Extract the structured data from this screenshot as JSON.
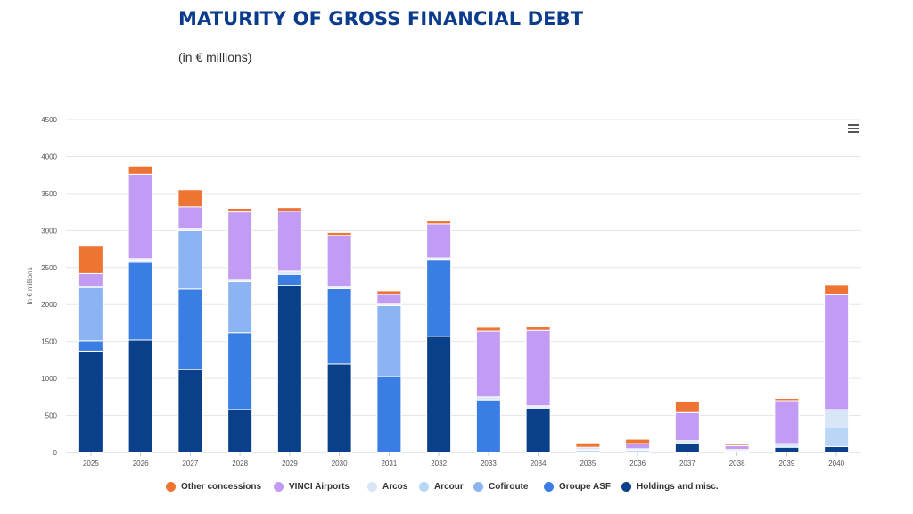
{
  "title": "MATURITY OF GROSS FINANCIAL DEBT",
  "subtitle": "(in € millions)",
  "menu": {
    "icon": "hamburger-menu-icon"
  },
  "chart_data": {
    "type": "bar",
    "stacked": true,
    "title": "MATURITY OF GROSS FINANCIAL DEBT",
    "subtitle": "(in € millions)",
    "xlabel": "",
    "ylabel": "In € millions",
    "ylim": [
      0,
      4500
    ],
    "yticks": [
      0,
      500,
      1000,
      1500,
      2000,
      2500,
      3000,
      3500,
      4000,
      4500
    ],
    "grid": true,
    "legend_position": "bottom",
    "categories": [
      "2025",
      "2026",
      "2027",
      "2028",
      "2029",
      "2030",
      "2031",
      "2032",
      "2033",
      "2034",
      "2035",
      "2036",
      "2037",
      "2038",
      "2039",
      "2040"
    ],
    "series": [
      {
        "name": "Holdings and misc.",
        "color": "#0a4089",
        "values": [
          1370,
          1520,
          1120,
          580,
          2260,
          1195,
          0,
          1570,
          0,
          600,
          0,
          0,
          120,
          0,
          70,
          80
        ]
      },
      {
        "name": "Groupe ASF",
        "color": "#3b7ee3",
        "values": [
          140,
          1050,
          1090,
          1040,
          150,
          1020,
          1025,
          1040,
          710,
          0,
          0,
          0,
          0,
          0,
          0,
          0
        ]
      },
      {
        "name": "Cofiroute",
        "color": "#8db4f2",
        "values": [
          720,
          0,
          790,
          690,
          0,
          0,
          960,
          0,
          0,
          0,
          0,
          0,
          0,
          0,
          0,
          0
        ]
      },
      {
        "name": "Arcour",
        "color": "#b9d6f6",
        "values": [
          0,
          30,
          0,
          0,
          0,
          0,
          0,
          0,
          0,
          0,
          30,
          30,
          0,
          20,
          0,
          260
        ]
      },
      {
        "name": "Arcos",
        "color": "#d9e6f8",
        "values": [
          20,
          20,
          20,
          20,
          40,
          20,
          20,
          20,
          40,
          30,
          20,
          20,
          40,
          20,
          50,
          240
        ]
      },
      {
        "name": "VINCI Airports",
        "color": "#c29cf4",
        "values": [
          170,
          1140,
          300,
          920,
          810,
          700,
          130,
          460,
          890,
          1020,
          20,
          70,
          380,
          50,
          580,
          1550
        ]
      },
      {
        "name": "Other concessions",
        "color": "#ee7433",
        "values": [
          370,
          110,
          230,
          50,
          50,
          40,
          50,
          40,
          50,
          50,
          60,
          60,
          150,
          20,
          30,
          140
        ]
      }
    ],
    "legend_order": [
      "Other concessions",
      "VINCI Airports",
      "Arcos",
      "Arcour",
      "Cofiroute",
      "Groupe ASF",
      "Holdings and misc."
    ]
  }
}
